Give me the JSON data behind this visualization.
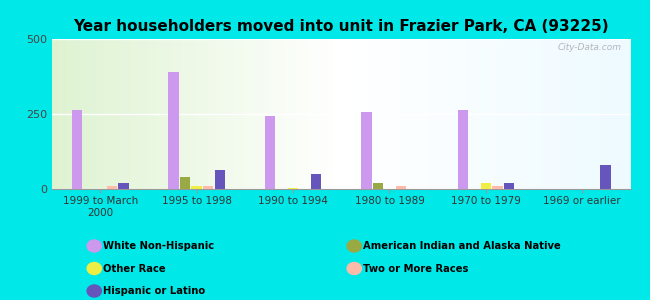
{
  "title": "Year householders moved into unit in Frazier Park, CA (93225)",
  "categories": [
    "1999 to March\n2000",
    "1995 to 1998",
    "1990 to 1994",
    "1980 to 1989",
    "1970 to 1979",
    "1969 or earlier"
  ],
  "series": {
    "White Non-Hispanic": [
      265,
      390,
      245,
      258,
      262,
      0
    ],
    "American Indian and Alaska Native": [
      0,
      40,
      0,
      20,
      0,
      0
    ],
    "Other Race": [
      0,
      10,
      5,
      0,
      20,
      0
    ],
    "Two or More Races": [
      10,
      10,
      0,
      10,
      10,
      0
    ],
    "Hispanic or Latino": [
      20,
      65,
      50,
      0,
      20,
      80
    ]
  },
  "colors": {
    "White Non-Hispanic": "#cc99ee",
    "American Indian and Alaska Native": "#99aa44",
    "Other Race": "#eeee44",
    "Two or More Races": "#ffbbaa",
    "Hispanic or Latino": "#6655bb"
  },
  "ylim": [
    0,
    500
  ],
  "yticks": [
    0,
    250,
    500
  ],
  "background_outer": "#00e8e8",
  "watermark": "City-Data.com",
  "bar_width": 0.12,
  "legend_items_left": [
    "White Non-Hispanic",
    "Other Race",
    "Hispanic or Latino"
  ],
  "legend_items_right": [
    "American Indian and Alaska Native",
    "Two or More Races"
  ]
}
